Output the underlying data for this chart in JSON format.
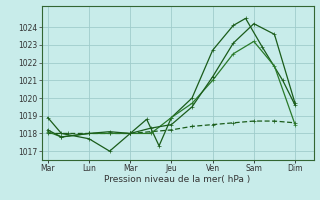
{
  "xlabel": "Pression niveau de la mer( hPa )",
  "bg_color": "#c8ecea",
  "grid_color": "#a0cccc",
  "line_color_dark": "#1a5c1a",
  "line_color_mid": "#2a7a2a",
  "ylim": [
    1016.5,
    1025.2
  ],
  "yticks": [
    1017,
    1018,
    1019,
    1020,
    1021,
    1022,
    1023,
    1024
  ],
  "xtick_labels": [
    "Mar",
    "Lun",
    "Mar",
    "Jeu",
    "Ven",
    "Sam",
    "Dim"
  ],
  "xtick_positions": [
    0,
    1,
    2,
    3,
    4,
    5,
    6
  ],
  "line1_x": [
    0,
    0.33,
    1.0,
    1.5,
    2.0,
    2.4,
    2.7,
    3.0,
    3.5,
    4.0,
    4.5,
    4.8,
    5.2,
    5.7,
    6.0
  ],
  "line1_y": [
    1018.9,
    1018.0,
    1017.7,
    1017.0,
    1018.0,
    1018.8,
    1017.3,
    1018.9,
    1020.0,
    1022.7,
    1024.1,
    1024.5,
    1022.9,
    1021.0,
    1019.6
  ],
  "line2_x": [
    0,
    0.33,
    1.0,
    1.5,
    2.0,
    2.5,
    3.0,
    3.5,
    4.0,
    4.5,
    5.0,
    5.5,
    6.0
  ],
  "line2_y": [
    1018.1,
    1017.8,
    1018.0,
    1018.0,
    1018.0,
    1018.0,
    1018.9,
    1019.7,
    1021.0,
    1022.5,
    1023.2,
    1021.8,
    1018.5
  ],
  "line3_x": [
    0,
    0.33,
    1.0,
    1.5,
    2.0,
    2.5,
    3.0,
    3.5,
    4.0,
    4.5,
    5.0,
    5.5,
    6.0
  ],
  "line3_y": [
    1018.2,
    1017.8,
    1018.0,
    1018.1,
    1018.0,
    1018.3,
    1018.5,
    1019.5,
    1021.2,
    1023.1,
    1024.2,
    1023.6,
    1019.7
  ],
  "line4_x": [
    0,
    0.5,
    1.0,
    1.5,
    2.0,
    2.5,
    3.0,
    3.5,
    4.0,
    4.5,
    5.0,
    5.5,
    6.0
  ],
  "line4_y": [
    1018.0,
    1018.0,
    1018.0,
    1018.0,
    1018.0,
    1018.1,
    1018.2,
    1018.4,
    1018.5,
    1018.6,
    1018.7,
    1018.7,
    1018.6
  ]
}
